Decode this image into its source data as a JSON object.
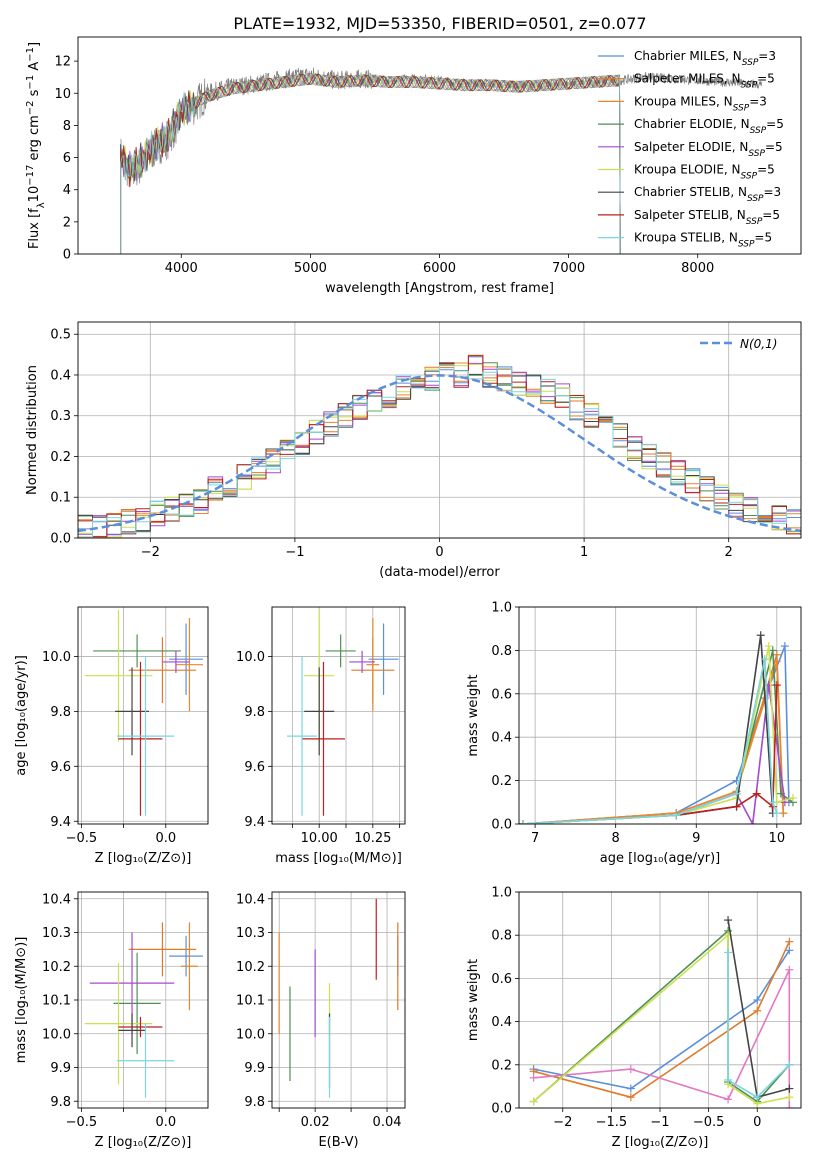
{
  "title": "PLATE=1932, MJD=53350, FIBERID=0501, z=0.077",
  "series": [
    {
      "name": "Chabrier MILES",
      "nssp": "3",
      "color": "#5b8fdb"
    },
    {
      "name": "Salpeter MILES",
      "nssp": "5",
      "color": "#e07a2b"
    },
    {
      "name": "Kroupa MILES",
      "nssp": "3",
      "color": "#e8872e"
    },
    {
      "name": "Chabrier ELODIE",
      "nssp": "5",
      "color": "#4f8f55"
    },
    {
      "name": "Salpeter ELODIE",
      "nssp": "5",
      "color": "#a34ad2"
    },
    {
      "name": "Kroupa ELODIE",
      "nssp": "5",
      "color": "#cce050"
    },
    {
      "name": "Chabrier STELIB",
      "nssp": "3",
      "color": "#444444"
    },
    {
      "name": "Salpeter STELIB",
      "nssp": "5",
      "color": "#b8211c"
    },
    {
      "name": "Kroupa STELIB",
      "nssp": "5",
      "color": "#7ad6e0"
    }
  ],
  "chart_data": [
    {
      "id": "spectrum",
      "type": "line",
      "title": "PLATE=1932, MJD=53350, FIBERID=0501, z=0.077",
      "xlabel": "wavelength [Angstrom, rest frame]",
      "ylabel": "Flux [f_λ 10^-17 erg cm^-2 s^-1 A^-1]",
      "xlim": [
        3200,
        8800
      ],
      "ylim": [
        0,
        13.5
      ],
      "xticks": [
        4000,
        5000,
        6000,
        7000,
        8000
      ],
      "yticks": [
        0,
        2,
        4,
        6,
        8,
        10,
        12
      ],
      "data_color": "#808080",
      "data_x": [
        3530,
        3600,
        3700,
        3800,
        3900,
        4000,
        4100,
        4200,
        4400,
        4600,
        4800,
        5000,
        5200,
        5400,
        5600,
        5800,
        6000,
        6200,
        6400,
        6600,
        6800,
        7000,
        7200,
        7400,
        7600,
        7800,
        8000,
        8200,
        8400,
        8500
      ],
      "data_y": [
        6.2,
        5.0,
        5.6,
        6.6,
        7.1,
        8.6,
        9.2,
        10.0,
        10.4,
        10.6,
        10.9,
        11.1,
        10.8,
        10.9,
        10.8,
        10.9,
        10.8,
        10.6,
        10.6,
        10.5,
        10.5,
        10.6,
        10.7,
        10.8,
        11.0,
        10.9,
        10.8,
        10.7,
        10.6,
        10.5
      ],
      "model_x": [
        3530,
        3600,
        3700,
        3800,
        3900,
        4000,
        4200,
        4400,
        4600,
        4800,
        5000,
        5200,
        5400,
        5600,
        5800,
        6000,
        6200,
        6400,
        6600,
        6800,
        7000,
        7200,
        7400
      ],
      "model_y": [
        6.0,
        5.3,
        5.9,
        6.8,
        7.4,
        8.9,
        9.8,
        10.3,
        10.5,
        10.7,
        10.9,
        10.7,
        10.8,
        10.7,
        10.7,
        10.6,
        10.5,
        10.5,
        10.4,
        10.5,
        10.6,
        10.7,
        10.8
      ]
    },
    {
      "id": "residuals",
      "type": "line",
      "xlabel": "(data-model)/error",
      "ylabel": "Normed distribution",
      "xlim": [
        -2.5,
        2.5
      ],
      "ylim": [
        0,
        0.53
      ],
      "xticks": [
        -2,
        -1,
        0,
        1,
        2
      ],
      "yticks": [
        0.0,
        0.1,
        0.2,
        0.3,
        0.4,
        0.5
      ],
      "gaussian_label": "N(0,1)",
      "gaussian_color": "#5b8fdb",
      "bins_start": -2.5,
      "bin_width": 0.1,
      "hist": [
        0.03,
        0.025,
        0.03,
        0.04,
        0.045,
        0.06,
        0.07,
        0.08,
        0.09,
        0.12,
        0.13,
        0.15,
        0.17,
        0.19,
        0.21,
        0.23,
        0.26,
        0.28,
        0.3,
        0.32,
        0.34,
        0.35,
        0.37,
        0.38,
        0.39,
        0.4,
        0.4,
        0.42,
        0.4,
        0.39,
        0.38,
        0.37,
        0.36,
        0.35,
        0.32,
        0.3,
        0.28,
        0.25,
        0.22,
        0.2,
        0.18,
        0.16,
        0.14,
        0.12,
        0.1,
        0.08,
        0.07,
        0.06,
        0.05,
        0.04
      ]
    },
    {
      "id": "age-vs-Z",
      "type": "scatter",
      "xlabel": "Z [log10(Z/Z_sun)]",
      "ylabel": "age [log10(age/yr)]",
      "xlim": [
        -0.52,
        0.25
      ],
      "ylim": [
        9.39,
        10.18
      ],
      "xticks": [
        -0.5,
        -0.25,
        0.0
      ],
      "xticklabels": [
        "-0.5",
        "",
        "0.0"
      ],
      "yticks": [
        9.4,
        9.6,
        9.8,
        10.0
      ],
      "points": [
        {
          "x": 0.12,
          "y": 9.99,
          "xe": 0.1,
          "ye": 0.13
        },
        {
          "x": -0.02,
          "y": 9.95,
          "xe": 0.2,
          "ye": 0.12
        },
        {
          "x": 0.14,
          "y": 9.97,
          "xe": 0.08,
          "ye": 0.17
        },
        {
          "x": -0.17,
          "y": 10.02,
          "xe": 0.26,
          "ye": 0.06
        },
        {
          "x": 0.06,
          "y": 9.98,
          "xe": 0.08,
          "ye": 0.04
        },
        {
          "x": -0.28,
          "y": 9.93,
          "xe": 0.2,
          "ye": 0.24
        },
        {
          "x": -0.2,
          "y": 9.8,
          "xe": 0.1,
          "ye": 0.16
        },
        {
          "x": -0.15,
          "y": 9.7,
          "xe": 0.13,
          "ye": 0.28
        },
        {
          "x": -0.12,
          "y": 9.71,
          "xe": 0.17,
          "ye": 0.29
        }
      ]
    },
    {
      "id": "age-vs-mass",
      "type": "scatter",
      "xlabel": "mass [log10(M/M_sun)]",
      "ylabel": "",
      "xlim": [
        9.78,
        10.4
      ],
      "ylim": [
        9.39,
        10.18
      ],
      "xticks": [
        9.875,
        10.0,
        10.125,
        10.25,
        10.375
      ],
      "xticklabels": [
        "",
        "10.00",
        "",
        "10.25",
        ""
      ],
      "yticks": [
        9.4,
        9.6,
        9.8,
        10.0
      ],
      "points": [
        {
          "x": 10.3,
          "y": 9.99,
          "xe": 0.07,
          "ye": 0.13
        },
        {
          "x": 10.25,
          "y": 9.95,
          "xe": 0.1,
          "ye": 0.12
        },
        {
          "x": 10.25,
          "y": 9.97,
          "xe": 0.03,
          "ye": 0.17
        },
        {
          "x": 10.1,
          "y": 10.02,
          "xe": 0.07,
          "ye": 0.06
        },
        {
          "x": 10.2,
          "y": 9.98,
          "xe": 0.06,
          "ye": 0.04
        },
        {
          "x": 10.0,
          "y": 9.93,
          "xe": 0.07,
          "ye": 0.24
        },
        {
          "x": 10.0,
          "y": 9.8,
          "xe": 0.07,
          "ye": 0.16
        },
        {
          "x": 10.02,
          "y": 9.7,
          "xe": 0.1,
          "ye": 0.28
        },
        {
          "x": 9.92,
          "y": 9.71,
          "xe": 0.07,
          "ye": 0.29
        }
      ]
    },
    {
      "id": "weight-vs-age",
      "type": "line",
      "xlabel": "age [log10(age/yr)]",
      "ylabel": "mass weight",
      "xlim": [
        6.8,
        10.3
      ],
      "ylim": [
        0,
        1.0
      ],
      "xticks": [
        7,
        8,
        9,
        10
      ],
      "yticks": [
        0.0,
        0.2,
        0.4,
        0.6,
        0.8,
        1.0
      ],
      "lines": [
        {
          "x": [
            6.85,
            8.75,
            9.5,
            9.85,
            10.1,
            10.15
          ],
          "y": [
            0.0,
            0.05,
            0.2,
            0.58,
            0.82,
            0.1
          ]
        },
        {
          "x": [
            6.85,
            8.75,
            9.5,
            10.0,
            10.08
          ],
          "y": [
            0.0,
            0.05,
            0.15,
            0.78,
            0.05
          ]
        },
        {
          "x": [
            6.85,
            8.75,
            9.5,
            10.0,
            10.08
          ],
          "y": [
            0.0,
            0.05,
            0.15,
            0.75,
            0.05
          ]
        },
        {
          "x": [
            6.85,
            8.75,
            9.5,
            9.95,
            10.05,
            10.2
          ],
          "y": [
            0.0,
            0.04,
            0.14,
            0.8,
            0.14,
            0.1
          ]
        },
        {
          "x": [
            6.85,
            8.75,
            9.5,
            9.7,
            9.9,
            10.1
          ],
          "y": [
            0.0,
            0.04,
            0.14,
            0.0,
            0.64,
            0.1
          ]
        },
        {
          "x": [
            6.85,
            8.75,
            9.5,
            9.9,
            10.0,
            10.2
          ],
          "y": [
            0.0,
            0.04,
            0.12,
            0.82,
            0.1,
            0.12
          ]
        },
        {
          "x": [
            8.75,
            9.5,
            9.8,
            9.95
          ],
          "y": [
            0.04,
            0.08,
            0.87,
            0.05
          ]
        },
        {
          "x": [
            8.75,
            9.5,
            9.75,
            9.95,
            10.0
          ],
          "y": [
            0.04,
            0.08,
            0.14,
            0.08,
            0.64
          ]
        },
        {
          "x": [
            6.85,
            8.75,
            9.5,
            9.85,
            9.95,
            10.0
          ],
          "y": [
            0.0,
            0.04,
            0.14,
            0.76,
            0.1,
            0.05
          ]
        }
      ]
    },
    {
      "id": "mass-vs-Z",
      "type": "scatter",
      "xlabel": "Z [log10(Z/Z_sun)]",
      "ylabel": "mass [log10(M/M_sun)]",
      "xlim": [
        -0.52,
        0.25
      ],
      "ylim": [
        9.78,
        10.42
      ],
      "xticks": [
        -0.5,
        -0.25,
        0.0
      ],
      "xticklabels": [
        "-0.5",
        "",
        "0.0"
      ],
      "yticks": [
        9.8,
        9.9,
        10.0,
        10.1,
        10.2,
        10.3,
        10.4
      ],
      "points": [
        {
          "x": 0.12,
          "y": 10.23,
          "xe": 0.1,
          "ye": 0.06
        },
        {
          "x": -0.02,
          "y": 10.25,
          "xe": 0.2,
          "ye": 0.08
        },
        {
          "x": 0.14,
          "y": 10.2,
          "xe": 0.05,
          "ye": 0.13
        },
        {
          "x": -0.17,
          "y": 10.09,
          "xe": 0.14,
          "ye": 0.15
        },
        {
          "x": -0.2,
          "y": 10.15,
          "xe": 0.25,
          "ye": 0.15
        },
        {
          "x": -0.28,
          "y": 10.03,
          "xe": 0.2,
          "ye": 0.18
        },
        {
          "x": -0.2,
          "y": 10.01,
          "xe": 0.08,
          "ye": 0.05
        },
        {
          "x": -0.15,
          "y": 10.02,
          "xe": 0.13,
          "ye": 0.03
        },
        {
          "x": -0.12,
          "y": 9.92,
          "xe": 0.17,
          "ye": 0.11
        }
      ]
    },
    {
      "id": "mass-vs-EBV",
      "type": "scatter",
      "xlabel": "E(B-V)",
      "ylabel": "",
      "xlim": [
        0.008,
        0.045
      ],
      "ylim": [
        9.78,
        10.42
      ],
      "xticks": [
        0.01,
        0.02,
        0.03,
        0.04
      ],
      "xticklabels": [
        "",
        "0.02",
        "",
        "0.04"
      ],
      "yticks": [
        9.8,
        9.9,
        10.0,
        10.1,
        10.2,
        10.3,
        10.4
      ],
      "points": [
        {
          "x": 0.043,
          "y": 10.23,
          "ye": 0.06
        },
        {
          "x": 0.043,
          "y": 10.2,
          "ye": 0.13
        },
        {
          "x": 0.01,
          "y": 10.15,
          "ye": 0.15
        },
        {
          "x": 0.013,
          "y": 10.0,
          "ye": 0.14
        },
        {
          "x": 0.02,
          "y": 10.12,
          "ye": 0.13
        },
        {
          "x": 0.024,
          "y": 10.08,
          "ye": 0.07
        },
        {
          "x": 0.024,
          "y": 9.95,
          "ye": 0.11
        },
        {
          "x": 0.037,
          "y": 10.28,
          "ye": 0.12
        },
        {
          "x": 0.024,
          "y": 9.93,
          "ye": 0.12
        }
      ]
    },
    {
      "id": "weight-vs-Z",
      "type": "line",
      "xlabel": "Z [log10(Z/Z_sun)]",
      "ylabel": "mass weight",
      "xlim": [
        -2.45,
        0.45
      ],
      "ylim": [
        0,
        1.0
      ],
      "xticks": [
        -2.0,
        -1.5,
        -1.0,
        -0.5,
        0.0
      ],
      "yticks": [
        0.0,
        0.2,
        0.4,
        0.6,
        0.8,
        1.0
      ],
      "lines": [
        {
          "x": [
            -2.3,
            -1.3,
            0.0,
            0.33
          ],
          "y": [
            0.18,
            0.09,
            0.5,
            0.73
          ]
        },
        {
          "x": [
            -2.3,
            -1.3,
            0.0,
            0.33
          ],
          "y": [
            0.17,
            0.05,
            0.45,
            0.77
          ]
        },
        {
          "x": [
            -2.3,
            -0.3,
            -0.3,
            0.0,
            0.33
          ],
          "y": [
            0.03,
            0.82,
            0.12,
            0.03,
            0.2
          ]
        },
        {
          "x": [
            -2.3,
            -1.3,
            -0.3,
            0.33,
            0.33
          ],
          "y": [
            0.14,
            0.18,
            0.04,
            0.64,
            0.0
          ]
        },
        {
          "x": [
            -2.3,
            -0.3,
            -0.3,
            0.0,
            0.33
          ],
          "y": [
            0.03,
            0.8,
            0.11,
            0.02,
            0.05
          ]
        },
        {
          "x": [
            -0.3,
            0.0,
            0.33
          ],
          "y": [
            0.87,
            0.05,
            0.09
          ]
        },
        {
          "x": [
            -0.3,
            -0.3,
            0.0,
            0.33
          ],
          "y": [
            0.72,
            0.13,
            0.05,
            0.2
          ]
        }
      ],
      "line_colors": [
        "#5b8fdb",
        "#e07a2b",
        "#4f8f55",
        "#e377c2",
        "#cce050",
        "#444444",
        "#7ad6e0"
      ]
    }
  ]
}
